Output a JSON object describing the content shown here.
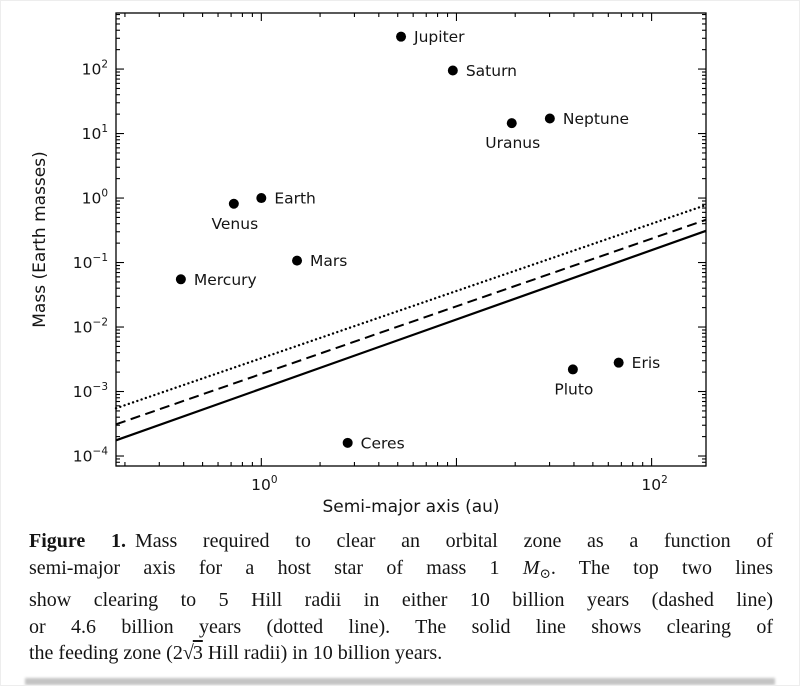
{
  "figure": {
    "caption": {
      "lines": [
        {
          "parts": [
            {
              "t": "Figure 1.",
              "s": "bold"
            },
            {
              "t": "Mass required to clear an orbital zone as a function of"
            }
          ]
        },
        {
          "parts": [
            {
              "t": "semi-major axis for a host star of mass 1 "
            },
            {
              "t": "M",
              "s": "italic"
            },
            {
              "t": "⊙",
              "s": "sub"
            },
            {
              "t": ". The top two lines"
            }
          ]
        },
        {
          "parts": [
            {
              "t": "show clearing to 5 Hill radii in either 10 billion years (dashed line)"
            }
          ]
        },
        {
          "parts": [
            {
              "t": "or 4.6 billion years (dotted line). The solid line shows clearing of"
            }
          ]
        },
        {
          "parts": [
            {
              "t": "the feeding zone (2"
            },
            {
              "t": "√",
              "s": "sqrt"
            },
            {
              "t": "3",
              "s": "overline"
            },
            {
              "t": " Hill radii) in 10 billion years."
            }
          ]
        }
      ]
    }
  },
  "chart_data": {
    "type": "scatter",
    "xlabel": "Semi-major axis (au)",
    "ylabel": "Mass (Earth masses)",
    "x_scale": "log",
    "y_scale": "log",
    "xlim": [
      0.18,
      190
    ],
    "ylim": [
      7e-05,
      740
    ],
    "grid": false,
    "legend": "none",
    "x_tick_exponents": [
      0,
      2
    ],
    "y_tick_exponents": [
      2,
      1,
      0,
      -1,
      -2,
      -3,
      -4
    ],
    "points": [
      {
        "name": "Mercury",
        "x": 0.387,
        "y": 0.055,
        "label_pos": "right"
      },
      {
        "name": "Venus",
        "x": 0.723,
        "y": 0.815,
        "label_pos": "below"
      },
      {
        "name": "Earth",
        "x": 1.0,
        "y": 1.0,
        "label_pos": "right"
      },
      {
        "name": "Mars",
        "x": 1.524,
        "y": 0.107,
        "label_pos": "right"
      },
      {
        "name": "Ceres",
        "x": 2.77,
        "y": 0.00016,
        "label_pos": "right"
      },
      {
        "name": "Jupiter",
        "x": 5.2,
        "y": 318,
        "label_pos": "right"
      },
      {
        "name": "Saturn",
        "x": 9.58,
        "y": 95,
        "label_pos": "right"
      },
      {
        "name": "Uranus",
        "x": 19.2,
        "y": 14.5,
        "label_pos": "below"
      },
      {
        "name": "Neptune",
        "x": 30.1,
        "y": 17.1,
        "label_pos": "right"
      },
      {
        "name": "Pluto",
        "x": 39.5,
        "y": 0.0022,
        "label_pos": "below"
      },
      {
        "name": "Eris",
        "x": 67.8,
        "y": 0.0028,
        "label_pos": "right"
      }
    ],
    "lines": [
      {
        "name": "feeding-zone-clearing-10-billion-years",
        "style": "solid",
        "x1": 0.18,
        "y1": 0.000175,
        "x2": 190,
        "y2": 0.31
      },
      {
        "name": "5-hill-radii-10-billion-years",
        "style": "dashed",
        "x1": 0.18,
        "y1": 0.00031,
        "x2": 190,
        "y2": 0.46
      },
      {
        "name": "5-hill-radii-4.6-billion-years",
        "style": "dotted",
        "x1": 0.18,
        "y1": 0.00055,
        "x2": 190,
        "y2": 0.78
      }
    ]
  }
}
